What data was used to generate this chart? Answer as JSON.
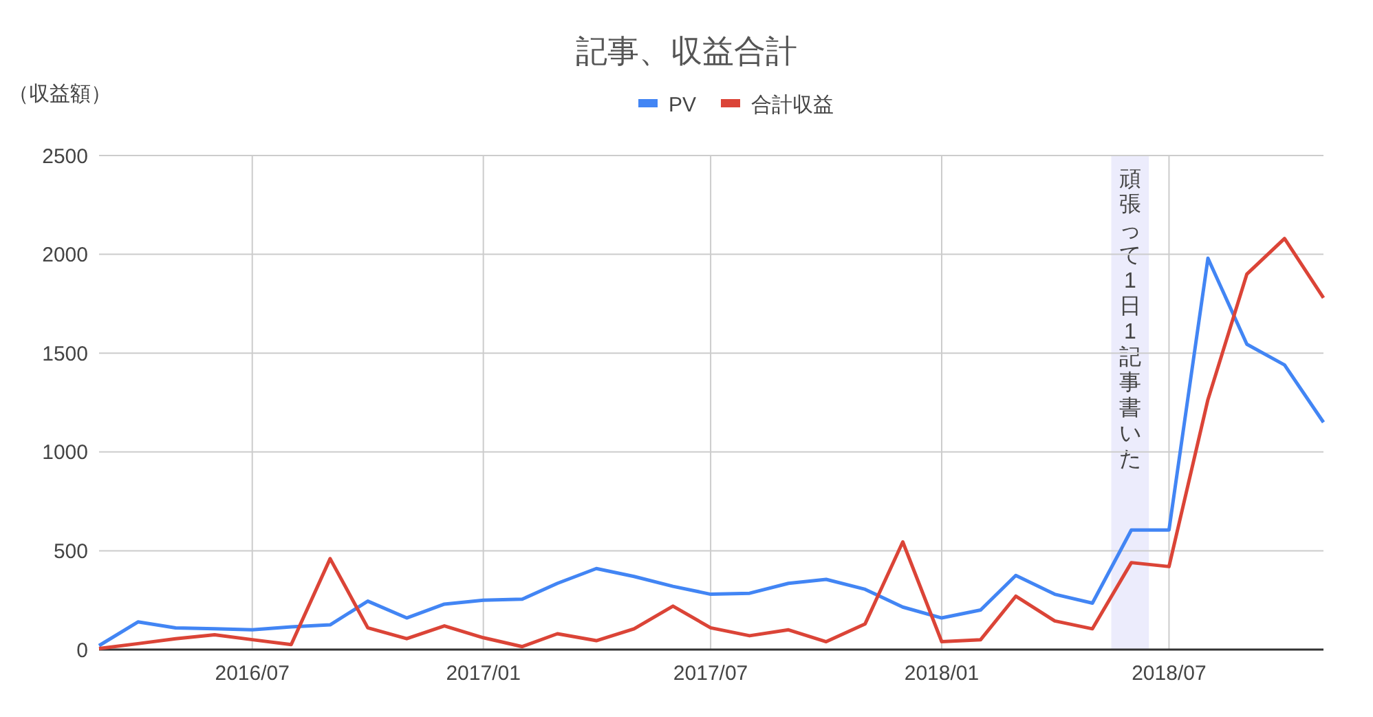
{
  "chart_data": {
    "type": "line",
    "title": "記事、収益合計",
    "ylabel": "（収益額）",
    "legend": "top",
    "grid": true,
    "x": [
      "2016-03",
      "2016-04",
      "2016-05",
      "2016-06",
      "2016-07",
      "2016-08",
      "2016-09",
      "2016-10",
      "2016-11",
      "2016-12",
      "2017-01",
      "2017-02",
      "2017-03",
      "2017-04",
      "2017-05",
      "2017-06",
      "2017-07",
      "2017-08",
      "2017-09",
      "2017-10",
      "2017-11",
      "2017-12",
      "2018-01",
      "2018-02",
      "2018-03",
      "2018-04",
      "2018-05",
      "2018-06",
      "2018-07",
      "2018-08",
      "2018-09",
      "2018-10",
      "2018-11"
    ],
    "xlim": [
      "2016-03",
      "2018-11"
    ],
    "xticks": [
      {
        "value": "2016-07",
        "label": "2016/07"
      },
      {
        "value": "2017-01",
        "label": "2017/01"
      },
      {
        "value": "2017-07",
        "label": "2017/07"
      },
      {
        "value": "2018-01",
        "label": "2018/01"
      },
      {
        "value": "2018-07",
        "label": "2018/07"
      }
    ],
    "ylim": [
      0,
      2500
    ],
    "yticks": [
      0,
      500,
      1000,
      1500,
      2000,
      2500
    ],
    "series": [
      {
        "name": "PV",
        "color": "#4285f4",
        "values": [
          20,
          140,
          110,
          105,
          100,
          115,
          125,
          245,
          160,
          230,
          250,
          255,
          335,
          410,
          370,
          320,
          280,
          285,
          335,
          355,
          305,
          215,
          160,
          200,
          375,
          280,
          235,
          605,
          605,
          1980,
          1545,
          1440,
          1150
        ]
      },
      {
        "name": "合計収益",
        "color": "#db4437",
        "values": [
          5,
          30,
          55,
          75,
          50,
          25,
          460,
          110,
          55,
          120,
          60,
          15,
          80,
          45,
          105,
          220,
          110,
          70,
          100,
          40,
          130,
          545,
          40,
          50,
          270,
          145,
          105,
          440,
          420,
          1265,
          1900,
          2080,
          1780
        ]
      }
    ],
    "bands": [
      {
        "axis": "x",
        "from": "2018-05-16",
        "to": "2018-06-15",
        "label": "頑張って1日1記事書いた",
        "color": "#ececfc"
      }
    ]
  }
}
